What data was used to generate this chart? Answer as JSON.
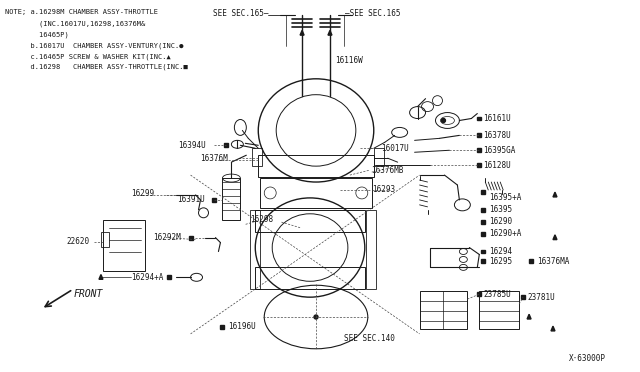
{
  "bg_color": "#ffffff",
  "line_color": "#1a1a1a",
  "note_text": [
    "NOTE; a.16298M CHAMBER ASSY-THROTTLE",
    "        (INC.16017U,16298,16376M&",
    "        16465P)",
    "      b.16017U  CHAMBER ASSY-VENTURY(INC.",
    "      c.16465P SCREW & WASHER KIT(INC.",
    "      d.16298   CHAMBER ASSY-THROTTLE(INC."
  ],
  "figsize": [
    6.4,
    3.72
  ],
  "dpi": 100
}
